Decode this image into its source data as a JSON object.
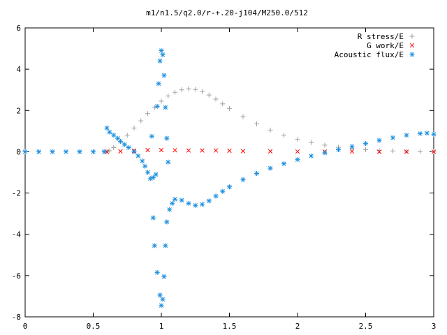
{
  "chart_data": {
    "type": "scatter",
    "title": "m1/n1.5/q2.0/r-+.20-j104/M250.0/512",
    "xlabel": "",
    "ylabel": "",
    "xlim": [
      0,
      3
    ],
    "ylim": [
      -8,
      6
    ],
    "xticks": [
      "0",
      "0.5",
      "1",
      "1.5",
      "2",
      "2.5",
      "3"
    ],
    "yticks": [
      "-8",
      "-6",
      "-4",
      "-2",
      "0",
      "2",
      "4",
      "6"
    ],
    "grid": false,
    "legend_position": "top-right",
    "series": [
      {
        "name": "R stress/E",
        "marker": "plus",
        "color": "#a0a0a0",
        "points": [
          [
            0.0,
            0.0
          ],
          [
            0.2,
            0.0
          ],
          [
            0.4,
            0.0
          ],
          [
            0.6,
            0.0
          ],
          [
            0.62,
            0.05
          ],
          [
            0.65,
            0.2
          ],
          [
            0.7,
            0.5
          ],
          [
            0.75,
            0.8
          ],
          [
            0.8,
            1.15
          ],
          [
            0.85,
            1.5
          ],
          [
            0.9,
            1.85
          ],
          [
            0.95,
            2.15
          ],
          [
            1.0,
            2.45
          ],
          [
            1.05,
            2.7
          ],
          [
            1.1,
            2.88
          ],
          [
            1.15,
            3.0
          ],
          [
            1.2,
            3.05
          ],
          [
            1.25,
            3.02
          ],
          [
            1.3,
            2.92
          ],
          [
            1.35,
            2.75
          ],
          [
            1.4,
            2.55
          ],
          [
            1.45,
            2.32
          ],
          [
            1.5,
            2.1
          ],
          [
            1.6,
            1.7
          ],
          [
            1.7,
            1.35
          ],
          [
            1.8,
            1.05
          ],
          [
            1.9,
            0.8
          ],
          [
            2.0,
            0.6
          ],
          [
            2.1,
            0.45
          ],
          [
            2.2,
            0.32
          ],
          [
            2.3,
            0.22
          ],
          [
            2.4,
            0.15
          ],
          [
            2.5,
            0.1
          ],
          [
            2.6,
            0.06
          ],
          [
            2.7,
            0.04
          ],
          [
            2.8,
            0.02
          ],
          [
            2.9,
            0.01
          ],
          [
            3.0,
            0.0
          ]
        ]
      },
      {
        "name": "G work/E",
        "marker": "cross",
        "color": "#ff0000",
        "points": [
          [
            0.6,
            0.0
          ],
          [
            0.7,
            0.02
          ],
          [
            0.8,
            0.05
          ],
          [
            0.9,
            0.08
          ],
          [
            1.0,
            0.08
          ],
          [
            1.1,
            0.07
          ],
          [
            1.2,
            0.06
          ],
          [
            1.3,
            0.06
          ],
          [
            1.4,
            0.06
          ],
          [
            1.5,
            0.05
          ],
          [
            1.6,
            0.03
          ],
          [
            1.8,
            0.02
          ],
          [
            2.0,
            0.01
          ],
          [
            2.2,
            0.01
          ],
          [
            2.4,
            0.01
          ],
          [
            2.6,
            0.0
          ],
          [
            2.8,
            0.0
          ],
          [
            3.0,
            0.0
          ]
        ]
      },
      {
        "name": "Acoustic flux/E",
        "marker": "star",
        "color": "#1e90e0",
        "points": [
          [
            0.0,
            0.0
          ],
          [
            0.1,
            0.0
          ],
          [
            0.2,
            0.0
          ],
          [
            0.3,
            0.0
          ],
          [
            0.4,
            0.0
          ],
          [
            0.5,
            0.0
          ],
          [
            0.58,
            0.0
          ],
          [
            0.6,
            1.15
          ],
          [
            0.62,
            0.95
          ],
          [
            0.65,
            0.8
          ],
          [
            0.68,
            0.65
          ],
          [
            0.7,
            0.5
          ],
          [
            0.73,
            0.35
          ],
          [
            0.76,
            0.2
          ],
          [
            0.8,
            0.0
          ],
          [
            0.83,
            -0.2
          ],
          [
            0.86,
            -0.45
          ],
          [
            0.88,
            -0.7
          ],
          [
            0.9,
            -1.0
          ],
          [
            0.92,
            -1.3
          ],
          [
            0.94,
            -1.25
          ],
          [
            0.96,
            -1.1
          ],
          [
            0.97,
            2.2
          ],
          [
            0.98,
            3.3
          ],
          [
            0.99,
            4.4
          ],
          [
            1.0,
            4.9
          ],
          [
            1.01,
            4.7
          ],
          [
            1.02,
            3.7
          ],
          [
            1.03,
            2.15
          ],
          [
            1.04,
            0.65
          ],
          [
            1.05,
            -0.5
          ],
          [
            0.93,
            0.75
          ],
          [
            0.94,
            -3.2
          ],
          [
            0.95,
            -4.55
          ],
          [
            0.97,
            -5.85
          ],
          [
            0.99,
            -6.95
          ],
          [
            1.0,
            -7.45
          ],
          [
            1.01,
            -7.15
          ],
          [
            1.02,
            -6.05
          ],
          [
            1.03,
            -4.55
          ],
          [
            1.04,
            -3.4
          ],
          [
            1.06,
            -2.8
          ],
          [
            1.08,
            -2.5
          ],
          [
            1.1,
            -2.3
          ],
          [
            1.15,
            -2.35
          ],
          [
            1.2,
            -2.5
          ],
          [
            1.25,
            -2.6
          ],
          [
            1.3,
            -2.55
          ],
          [
            1.35,
            -2.38
          ],
          [
            1.4,
            -2.15
          ],
          [
            1.45,
            -1.92
          ],
          [
            1.5,
            -1.7
          ],
          [
            1.6,
            -1.35
          ],
          [
            1.7,
            -1.05
          ],
          [
            1.8,
            -0.8
          ],
          [
            1.9,
            -0.58
          ],
          [
            2.0,
            -0.38
          ],
          [
            2.1,
            -0.2
          ],
          [
            2.2,
            -0.05
          ],
          [
            2.3,
            0.1
          ],
          [
            2.4,
            0.25
          ],
          [
            2.5,
            0.4
          ],
          [
            2.6,
            0.55
          ],
          [
            2.7,
            0.68
          ],
          [
            2.8,
            0.8
          ],
          [
            2.9,
            0.88
          ],
          [
            2.95,
            0.9
          ],
          [
            3.0,
            0.85
          ]
        ]
      }
    ]
  }
}
